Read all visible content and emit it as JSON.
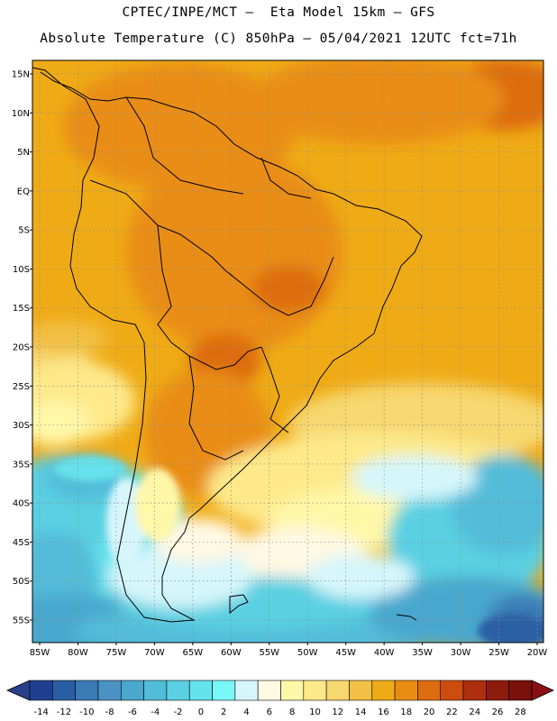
{
  "header": {
    "line1": "CPTEC/INPE/MCT –  Eta Model 15km – GFS",
    "line2": "Absolute Temperature (C) 850hPa – 05/04/2021 12UTC fct=71h"
  },
  "axes": {
    "lat_labels": [
      "15N",
      "10N",
      "5N",
      "EQ",
      "5S",
      "10S",
      "15S",
      "20S",
      "25S",
      "30S",
      "35S",
      "40S",
      "45S",
      "50S",
      "55S"
    ],
    "lon_labels": [
      "85W",
      "80W",
      "75W",
      "70W",
      "65W",
      "60W",
      "55W",
      "50W",
      "45W",
      "40W",
      "35W",
      "30W",
      "25W",
      "20W"
    ]
  },
  "colorbar": {
    "labels": [
      "-14",
      "-12",
      "-10",
      "-8",
      "-6",
      "-4",
      "-2",
      "0",
      "2",
      "4",
      "6",
      "8",
      "10",
      "12",
      "14",
      "16",
      "18",
      "20",
      "22",
      "24",
      "26",
      "28"
    ],
    "colors": [
      "#1f3f8e",
      "#2a5ea4",
      "#3a7ab5",
      "#4a92c4",
      "#4aa7cd",
      "#52bcd9",
      "#5ad0e2",
      "#66e2ec",
      "#7af7f7",
      "#d6f6fb",
      "#fff8e3",
      "#fff7a8",
      "#fde98a",
      "#f7d770",
      "#f2c044",
      "#efab16",
      "#e98d12",
      "#dd6c10",
      "#cd4c10",
      "#ae2f0e",
      "#8c1b0d",
      "#7a0f0b"
    ],
    "min_color": "#2a3f8a",
    "max_color": "#8a0f14"
  },
  "map": {
    "lon_range": [
      -85,
      -20
    ],
    "lat_range": [
      -58,
      17
    ],
    "grid": "dotted",
    "field": "temperature 850hPa"
  }
}
